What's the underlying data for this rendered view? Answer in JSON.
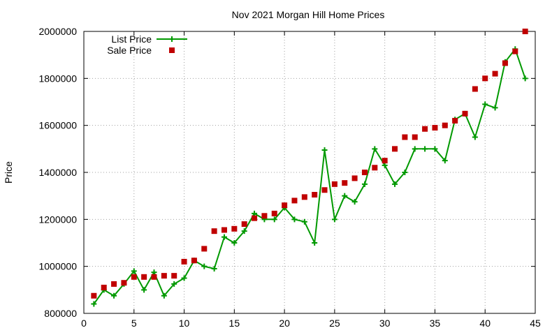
{
  "colors": {
    "list_price": "#009900",
    "sale_price": "#c00000",
    "grid": "#a0a0a0",
    "axis": "#000000"
  },
  "chart_data": {
    "type": "line",
    "title": "Nov 2021 Morgan Hill Home Prices",
    "xlabel": "",
    "ylabel": "Price",
    "xlim": [
      0,
      45
    ],
    "ylim": [
      800000,
      2000000
    ],
    "xticks": [
      0,
      5,
      10,
      15,
      20,
      25,
      30,
      35,
      40,
      45
    ],
    "yticks": [
      800000,
      1000000,
      1200000,
      1400000,
      1600000,
      1800000,
      2000000
    ],
    "grid": true,
    "legend_position": "top-left",
    "series": [
      {
        "name": "List Price",
        "style": "line-with-plus-markers",
        "x": [
          1,
          2,
          3,
          4,
          5,
          6,
          7,
          8,
          9,
          10,
          11,
          12,
          13,
          14,
          15,
          16,
          17,
          18,
          19,
          20,
          21,
          22,
          23,
          24,
          25,
          26,
          27,
          28,
          29,
          30,
          31,
          32,
          33,
          34,
          35,
          36,
          37,
          38,
          39,
          40,
          41,
          42,
          43,
          44
        ],
        "values": [
          840000,
          900000,
          875000,
          925000,
          980000,
          900000,
          975000,
          875000,
          925000,
          950000,
          1025000,
          1000000,
          990000,
          1125000,
          1100000,
          1150000,
          1225000,
          1200000,
          1200000,
          1250000,
          1200000,
          1190000,
          1100000,
          1495000,
          1200000,
          1300000,
          1275000,
          1350000,
          1500000,
          1430000,
          1350000,
          1400000,
          1500000,
          1500000,
          1500000,
          1450000,
          1625000,
          1650000,
          1550000,
          1690000,
          1675000,
          1870000,
          1925000,
          1800000
        ]
      },
      {
        "name": "Sale Price",
        "style": "square-markers",
        "x": [
          1,
          2,
          3,
          4,
          5,
          6,
          7,
          8,
          9,
          10,
          11,
          12,
          13,
          14,
          15,
          16,
          17,
          18,
          19,
          20,
          21,
          22,
          23,
          24,
          25,
          26,
          27,
          28,
          29,
          30,
          31,
          32,
          33,
          34,
          35,
          36,
          37,
          38,
          39,
          40,
          41,
          42,
          43,
          44
        ],
        "values": [
          875000,
          910000,
          925000,
          930000,
          955000,
          955000,
          955000,
          960000,
          960000,
          1020000,
          1025000,
          1075000,
          1150000,
          1155000,
          1160000,
          1180000,
          1205000,
          1215000,
          1225000,
          1260000,
          1280000,
          1295000,
          1305000,
          1325000,
          1350000,
          1355000,
          1375000,
          1400000,
          1420000,
          1450000,
          1500000,
          1550000,
          1550000,
          1585000,
          1590000,
          1600000,
          1620000,
          1650000,
          1755000,
          1800000,
          1820000,
          1865000,
          1915000,
          2000000
        ]
      }
    ]
  }
}
